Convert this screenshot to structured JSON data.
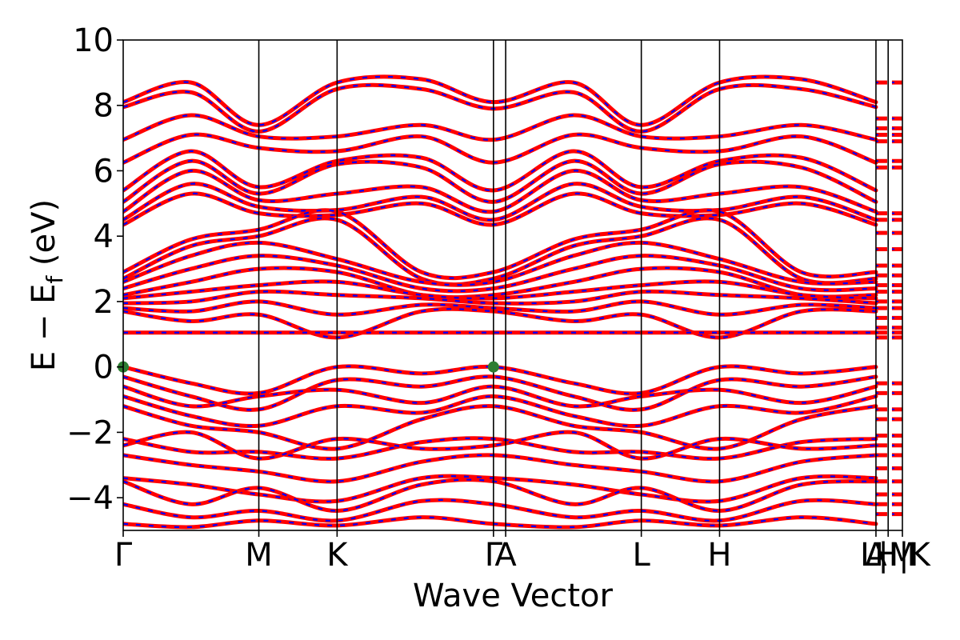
{
  "chart_data": {
    "type": "line",
    "title": "",
    "xlabel": "Wave Vector",
    "ylabel": "E − E",
    "ylabel_subscript": "f",
    "ylabel_suffix": " (eV)",
    "ylim": [
      -5,
      10
    ],
    "y_ticks": [
      {
        "value": 10,
        "label": "10"
      },
      {
        "value": 8,
        "label": "8"
      },
      {
        "value": 6,
        "label": "6"
      },
      {
        "value": 4,
        "label": "4"
      },
      {
        "value": 2,
        "label": "2"
      },
      {
        "value": 0,
        "label": "0"
      },
      {
        "value": -2,
        "label": "−2"
      },
      {
        "value": -4,
        "label": "−4"
      }
    ],
    "xlim": [
      0,
      5.745
    ],
    "high_symmetry_points": [
      {
        "label": "Γ",
        "x": 0.0
      },
      {
        "label": "M",
        "x": 1.0
      },
      {
        "label": "K",
        "x": 1.577
      },
      {
        "label": "Γ",
        "x": 2.73
      },
      {
        "label": "A",
        "x": 2.82
      },
      {
        "label": "L",
        "x": 3.82
      },
      {
        "label": "H",
        "x": 4.397
      },
      {
        "label": "A",
        "x": 5.55
      },
      {
        "label": "L|M",
        "x": 5.64
      },
      {
        "label": "H|K",
        "x": 5.745
      }
    ],
    "series": [
      {
        "color": "#ff0000",
        "style": "solid"
      },
      {
        "color": "#0000ff",
        "style": "dashed"
      }
    ],
    "markers": [
      {
        "x": 0.0,
        "y": 0.0,
        "color": "#2e7d32"
      },
      {
        "x": 2.73,
        "y": 0.0,
        "color": "#2e7d32"
      }
    ],
    "grid": false,
    "bands": [
      {
        "y": [
          8.1,
          8.7,
          7.4,
          8.7,
          8.8,
          8.1,
          8.7,
          7.4,
          8.7,
          8.8,
          8.1
        ]
      },
      {
        "y": [
          7.95,
          8.4,
          7.2,
          8.5,
          8.5,
          7.9,
          8.4,
          7.2,
          8.5,
          8.5,
          7.95
        ]
      },
      {
        "y": [
          6.95,
          7.7,
          7.05,
          7.05,
          7.4,
          6.95,
          7.7,
          7.05,
          7.05,
          7.4,
          6.95
        ]
      },
      {
        "y": [
          6.25,
          7.1,
          6.7,
          6.6,
          7.05,
          6.25,
          7.1,
          6.7,
          6.6,
          7.05,
          6.25
        ]
      },
      {
        "y": [
          5.4,
          6.6,
          5.5,
          6.3,
          6.4,
          5.4,
          6.6,
          5.5,
          6.3,
          6.4,
          5.4
        ]
      },
      {
        "y": [
          5.05,
          6.3,
          5.3,
          6.2,
          6.1,
          5.05,
          6.3,
          5.3,
          6.2,
          6.1,
          5.05
        ]
      },
      {
        "y": [
          4.75,
          6.0,
          5.1,
          5.3,
          5.5,
          4.75,
          6.0,
          5.1,
          5.3,
          5.5,
          4.75
        ]
      },
      {
        "y": [
          4.5,
          5.6,
          4.9,
          4.8,
          5.2,
          4.5,
          5.6,
          4.9,
          4.8,
          5.2,
          4.5
        ]
      },
      {
        "y": [
          4.35,
          5.3,
          4.7,
          4.65,
          5.0,
          4.35,
          5.3,
          4.7,
          4.65,
          5.0,
          4.35
        ]
      },
      {
        "y": [
          2.9,
          3.9,
          4.2,
          4.75,
          2.9,
          2.9,
          3.9,
          4.2,
          4.75,
          2.9,
          2.9
        ]
      },
      {
        "y": [
          2.7,
          3.7,
          4.0,
          4.5,
          2.7,
          2.7,
          3.7,
          4.0,
          4.5,
          2.7,
          2.7
        ]
      },
      {
        "y": [
          2.6,
          3.4,
          3.8,
          3.3,
          2.6,
          2.6,
          3.4,
          3.8,
          3.3,
          2.6,
          2.6
        ]
      },
      {
        "y": [
          2.4,
          3.0,
          3.4,
          3.1,
          2.4,
          2.4,
          3.0,
          3.4,
          3.1,
          2.4,
          2.4
        ]
      },
      {
        "y": [
          2.2,
          2.6,
          3.0,
          2.9,
          2.2,
          2.2,
          2.6,
          3.0,
          2.9,
          2.2,
          2.2
        ]
      },
      {
        "y": [
          2.1,
          2.3,
          2.5,
          2.6,
          2.2,
          2.1,
          2.3,
          2.5,
          2.6,
          2.2,
          2.1
        ]
      },
      {
        "y": [
          1.95,
          2.0,
          2.3,
          2.2,
          2.1,
          1.95,
          2.0,
          2.3,
          2.2,
          2.1,
          1.95
        ]
      },
      {
        "y": [
          1.8,
          1.7,
          2.0,
          1.6,
          1.9,
          1.8,
          1.7,
          2.0,
          1.6,
          1.9,
          1.8
        ]
      },
      {
        "y": [
          1.7,
          1.4,
          1.6,
          0.9,
          1.7,
          1.7,
          1.4,
          1.6,
          0.9,
          1.7,
          1.7
        ]
      },
      {
        "y": [
          1.05,
          1.05,
          1.05,
          1.05,
          1.05,
          1.05,
          1.05,
          1.05,
          1.05,
          1.05,
          1.05
        ]
      },
      {
        "y": [
          0.0,
          -0.5,
          -0.8,
          0.0,
          -0.2,
          0.0,
          -0.5,
          -0.8,
          0.0,
          -0.2,
          0.0
        ]
      },
      {
        "y": [
          -0.3,
          -0.9,
          -1.3,
          -0.4,
          -0.6,
          -0.3,
          -0.9,
          -1.3,
          -0.4,
          -0.6,
          -0.3
        ]
      },
      {
        "y": [
          -0.6,
          -1.2,
          -0.9,
          -0.7,
          -1.1,
          -0.6,
          -1.2,
          -0.9,
          -0.7,
          -1.1,
          -0.6
        ]
      },
      {
        "y": [
          -0.9,
          -1.5,
          -1.8,
          -1.2,
          -1.4,
          -0.9,
          -1.5,
          -1.8,
          -1.2,
          -1.4,
          -0.9
        ]
      },
      {
        "y": [
          -1.2,
          -1.8,
          -2.0,
          -2.5,
          -1.6,
          -1.2,
          -1.8,
          -2.0,
          -2.5,
          -1.6,
          -1.2
        ]
      },
      {
        "y": [
          -2.2,
          -2.6,
          -2.6,
          -2.8,
          -2.3,
          -2.2,
          -2.6,
          -2.6,
          -2.8,
          -2.3,
          -2.2
        ]
      },
      {
        "y": [
          -2.4,
          -2.0,
          -2.8,
          -2.2,
          -2.5,
          -2.4,
          -2.0,
          -2.8,
          -2.2,
          -2.5,
          -2.4
        ]
      },
      {
        "y": [
          -2.7,
          -3.0,
          -3.2,
          -3.5,
          -2.9,
          -2.7,
          -3.0,
          -3.2,
          -3.5,
          -2.9,
          -2.7
        ]
      },
      {
        "y": [
          -3.4,
          -3.6,
          -3.9,
          -4.1,
          -3.4,
          -3.4,
          -3.6,
          -3.9,
          -4.1,
          -3.4,
          -3.4
        ]
      },
      {
        "y": [
          -3.5,
          -4.2,
          -3.7,
          -4.4,
          -3.6,
          -3.5,
          -4.2,
          -3.7,
          -4.4,
          -3.6,
          -3.5
        ]
      },
      {
        "y": [
          -4.2,
          -4.6,
          -4.4,
          -4.7,
          -4.1,
          -4.2,
          -4.6,
          -4.4,
          -4.7,
          -4.1,
          -4.2
        ]
      },
      {
        "y": [
          -4.8,
          -4.9,
          -4.7,
          -4.85,
          -4.6,
          -4.8,
          -4.9,
          -4.7,
          -4.85,
          -4.6,
          -4.8
        ]
      }
    ],
    "band_x": [
      0.0,
      0.5,
      1.0,
      1.577,
      2.2,
      2.73,
      3.32,
      3.82,
      4.397,
      5.0,
      5.55
    ],
    "edge_segment_levels": [
      8.7,
      7.6,
      7.3,
      7.1,
      6.9,
      6.3,
      6.1,
      4.7,
      4.5,
      4.1,
      3.6,
      3.1,
      2.8,
      2.5,
      2.3,
      2.0,
      1.8,
      1.5,
      1.2,
      1.05,
      0.9,
      -0.5,
      -0.8,
      -1.3,
      -1.6,
      -2.1,
      -2.4,
      -2.7,
      -3.1,
      -3.5,
      -3.9,
      -4.2,
      -4.5
    ]
  }
}
